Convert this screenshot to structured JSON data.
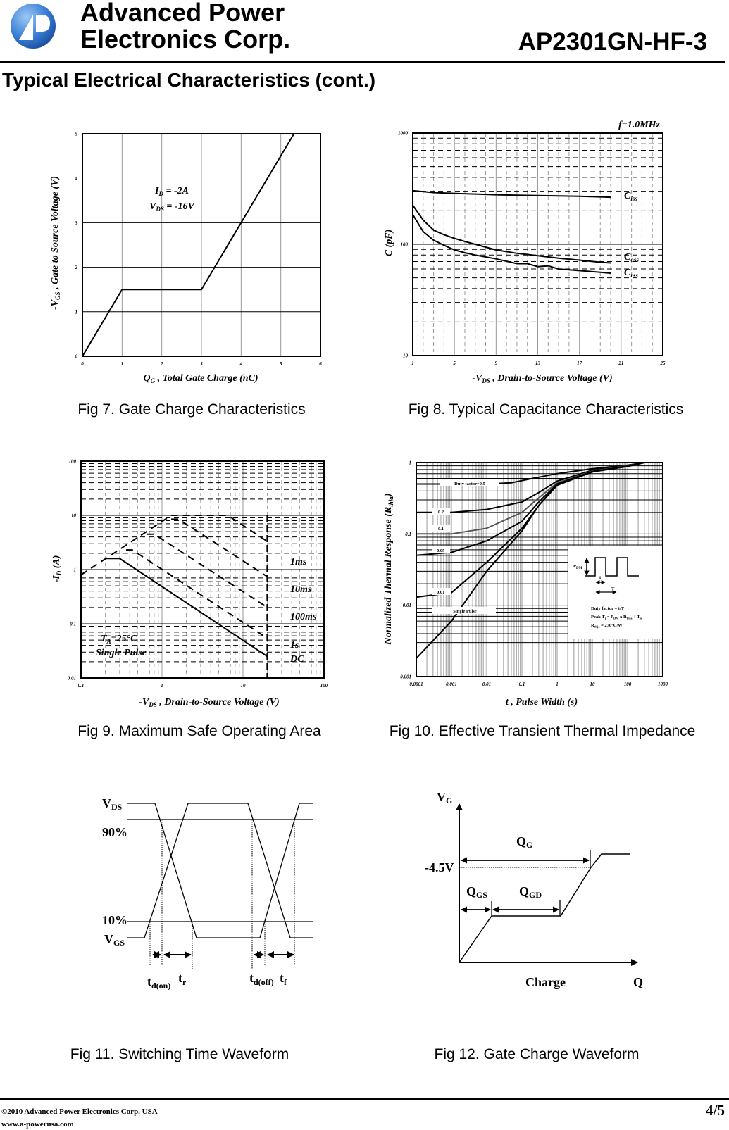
{
  "header": {
    "company_line1": "Advanced Power",
    "company_line2": "Electronics Corp.",
    "part_number": "AP2301GN-HF-3",
    "logo_text": "AP"
  },
  "section_title": "Typical Electrical Characteristics  (cont.)",
  "captions": {
    "fig7": "Fig 7. Gate Charge Characteristics",
    "fig8": "Fig 8. Typical Capacitance Characteristics",
    "fig9": "Fig 9. Maximum Safe Operating Area",
    "fig10": "Fig 10. Effective Transient Thermal Impedance",
    "fig11": "Fig 11. Switching Time Waveform",
    "fig12": "Fig 12. Gate Charge Waveform"
  },
  "chart_data": [
    {
      "type": "line",
      "title": "",
      "xlabel": {
        "pre": "Q",
        "sub": "G",
        "rest": " , Total Gate Charge (nC)"
      },
      "ylabel": {
        "pre": "-V",
        "sub": "GS",
        "rest": " , Gate to Source Voltage (V)"
      },
      "xscale": "linear",
      "yscale": "linear",
      "xlim": [
        0,
        6
      ],
      "ylim": [
        0,
        5
      ],
      "xticks": [
        "0",
        "1",
        "2",
        "3",
        "4",
        "5",
        "6"
      ],
      "yticks": [
        "0",
        "1",
        "2",
        "3",
        "4",
        "5"
      ],
      "grid": true,
      "annotations": [
        {
          "pre": "I",
          "sub": "D",
          "rest": " = -2A"
        },
        {
          "pre": "V",
          "sub": "DS",
          "rest": " = -16V"
        }
      ],
      "series": [
        {
          "style": "solid",
          "x": [
            0,
            1,
            3,
            5.33
          ],
          "y": [
            0,
            1.5,
            1.5,
            5
          ]
        }
      ]
    },
    {
      "type": "line",
      "title": "",
      "xlabel": {
        "pre": "-V",
        "sub": "DS",
        "rest": "  , Drain-to-Source Voltage (V)"
      },
      "ylabel": {
        "pre": "C (pF)",
        "sub": "",
        "rest": ""
      },
      "xscale": "linear",
      "yscale": "log",
      "xlim": [
        1,
        25
      ],
      "ylim": [
        10,
        1000
      ],
      "xticks": [
        "1",
        "5",
        "9",
        "13",
        "17",
        "21",
        "25"
      ],
      "yticks": [
        "10",
        "100",
        "1000"
      ],
      "grid": true,
      "annotations": [
        {
          "pre": "f=1.0MHz",
          "sub": "",
          "rest": ""
        }
      ],
      "series": [
        {
          "name": "C",
          "sub": "iss",
          "style": "solid",
          "x": [
            1,
            3,
            5,
            7,
            9,
            11,
            13,
            15,
            17,
            19,
            20
          ],
          "y": [
            303,
            292,
            287,
            283,
            279,
            276,
            274,
            272,
            270,
            267,
            265
          ]
        },
        {
          "name": "C",
          "sub": "oss",
          "style": "solid",
          "x": [
            1,
            2,
            3,
            4,
            5,
            6,
            7,
            9,
            11,
            13,
            15,
            17,
            19,
            20
          ],
          "y": [
            225,
            165,
            134,
            122,
            113,
            106,
            100,
            89,
            83,
            79,
            75,
            72,
            69,
            68
          ]
        },
        {
          "name": "C",
          "sub": "rss",
          "style": "solid",
          "x": [
            1,
            2,
            3,
            4,
            5,
            6,
            7,
            9,
            11,
            12,
            13,
            14,
            15,
            17,
            19,
            20
          ],
          "y": [
            185,
            130,
            109,
            98,
            89,
            84,
            80,
            74,
            67,
            67,
            63,
            64,
            60,
            58,
            56,
            55
          ]
        }
      ]
    },
    {
      "type": "line",
      "title": "",
      "xlabel": {
        "pre": "-V",
        "sub": "DS",
        "rest": "  , Drain-to-Source Voltage (V)"
      },
      "ylabel": {
        "pre": "-I",
        "sub": "D",
        "rest": " (A)"
      },
      "xscale": "log",
      "yscale": "log",
      "xlim": [
        0.1,
        100
      ],
      "ylim": [
        0.01,
        100
      ],
      "xticks": [
        "0.1",
        "1",
        "10",
        "100"
      ],
      "yticks": [
        "0.01",
        "0.1",
        "1",
        "10",
        "100"
      ],
      "grid": true,
      "annotations": [
        {
          "pre": "T",
          "sub": "A",
          "rest": "=25°C"
        },
        {
          "pre": "Single Pulse",
          "sub": "",
          "rest": ""
        }
      ],
      "series": [
        {
          "name": "1ms",
          "style": "dashed",
          "x": [
            0.1,
            1.3,
            6.5,
            20
          ],
          "y": [
            0.8,
            10,
            10,
            3.3
          ]
        },
        {
          "name": "10ms",
          "style": "dashed",
          "x": [
            1.3,
            1.6,
            20
          ],
          "y": [
            8.5,
            8.5,
            0.74
          ]
        },
        {
          "name": "100ms",
          "style": "dashed",
          "x": [
            0.65,
            0.8,
            20
          ],
          "y": [
            4.5,
            4.5,
            0.2
          ]
        },
        {
          "name": "1s",
          "style": "dashed",
          "x": [
            0.36,
            0.43,
            20
          ],
          "y": [
            2.3,
            2.3,
            0.054
          ]
        },
        {
          "name": "DC",
          "style": "solid",
          "x": [
            0.2,
            0.3,
            20
          ],
          "y": [
            1.6,
            1.6,
            0.025
          ]
        },
        {
          "name": "",
          "style": "dashed-bold",
          "x": [
            20,
            20
          ],
          "y": [
            10,
            0.01
          ]
        }
      ]
    },
    {
      "type": "line",
      "title": "",
      "xlabel": {
        "pre": "t",
        "sub": "",
        "rest": " , Pulse Width (s)"
      },
      "ylabel": {
        "pre": "Normalized Thermal Response (R",
        "sub": "thja",
        "rest": ")"
      },
      "xscale": "log",
      "yscale": "log",
      "xlim": [
        0.0001,
        1000
      ],
      "ylim": [
        0.001,
        1
      ],
      "xticks": [
        "0.0001",
        "0.001",
        "0.01",
        "0.1",
        "1",
        "10",
        "100",
        "1000"
      ],
      "yticks": [
        "0.001",
        "0.01",
        "0.1",
        "1"
      ],
      "grid": true,
      "series": [
        {
          "name": "Duty factor=0.5",
          "style": "solid",
          "x": [
            0.0001,
            0.01,
            0.05,
            0.2,
            1,
            10,
            100,
            300
          ],
          "y": [
            0.5,
            0.5,
            0.52,
            0.6,
            0.7,
            0.82,
            0.92,
            1
          ]
        },
        {
          "name": "0.2",
          "style": "solid",
          "x": [
            0.0001,
            0.001,
            0.01,
            0.1,
            0.3,
            1,
            10,
            100,
            300
          ],
          "y": [
            0.2,
            0.2,
            0.22,
            0.28,
            0.38,
            0.55,
            0.78,
            0.9,
            1
          ]
        },
        {
          "name": "0.1",
          "style": "grey",
          "x": [
            0.0001,
            0.001,
            0.01,
            0.1,
            0.3,
            1,
            10,
            100,
            300
          ],
          "y": [
            0.1,
            0.1,
            0.12,
            0.2,
            0.32,
            0.52,
            0.76,
            0.9,
            1
          ]
        },
        {
          "name": "0.05",
          "style": "solid",
          "x": [
            0.0001,
            0.001,
            0.01,
            0.1,
            0.3,
            1,
            10,
            100,
            300
          ],
          "y": [
            0.05,
            0.055,
            0.08,
            0.15,
            0.28,
            0.5,
            0.75,
            0.89,
            1
          ]
        },
        {
          "name": "0.01",
          "style": "solid",
          "x": [
            0.0001,
            0.001,
            0.01,
            0.1,
            0.3,
            1,
            10,
            100,
            300
          ],
          "y": [
            0.013,
            0.015,
            0.04,
            0.12,
            0.25,
            0.5,
            0.75,
            0.89,
            1
          ]
        },
        {
          "name": "Single Pulse",
          "style": "solid",
          "x": [
            0.0001,
            0.001,
            0.01,
            0.1,
            0.3,
            1,
            10,
            100,
            300
          ],
          "y": [
            0.0018,
            0.006,
            0.03,
            0.11,
            0.25,
            0.48,
            0.74,
            0.88,
            1
          ]
        }
      ],
      "inset": {
        "pdm": {
          "pre": "P",
          "sub": "DM"
        },
        "t": "t",
        "T": "T",
        "line1": "Duty factor = t/T",
        "line2": {
          "pre": "Peak T",
          "sub1": "j",
          "mid": " = P",
          "sub2": "DM",
          "mid2": " x R",
          "sub3": "thja",
          "mid3": " + T",
          "sub4": "a"
        },
        "line3": {
          "pre": "R",
          "sub": "thja",
          "rest": " = 270°C/W"
        }
      }
    }
  ],
  "fig11": {
    "vds": {
      "pre": "V",
      "sub": "DS"
    },
    "vgs": {
      "pre": "V",
      "sub": "GS"
    },
    "p90": "90%",
    "p10": "10%",
    "tdon": {
      "pre": "t",
      "sub": "d(on)"
    },
    "tr": {
      "pre": "t",
      "sub": "r"
    },
    "tdoff": {
      "pre": "t",
      "sub": "d(off)"
    },
    "tf": {
      "pre": "t",
      "sub": "f"
    }
  },
  "fig12": {
    "vg": {
      "pre": "V",
      "sub": "G"
    },
    "level": "-4.5V",
    "qg": {
      "pre": "Q",
      "sub": "G"
    },
    "qgs": {
      "pre": "Q",
      "sub": "GS"
    },
    "qgd": {
      "pre": "Q",
      "sub": "GD"
    },
    "charge": "Charge",
    "q": "Q"
  },
  "footer": {
    "copyright": "©2010 Advanced Power Electronics Corp. USA",
    "website": "www.a-powerusa.com",
    "page": "4/5"
  }
}
